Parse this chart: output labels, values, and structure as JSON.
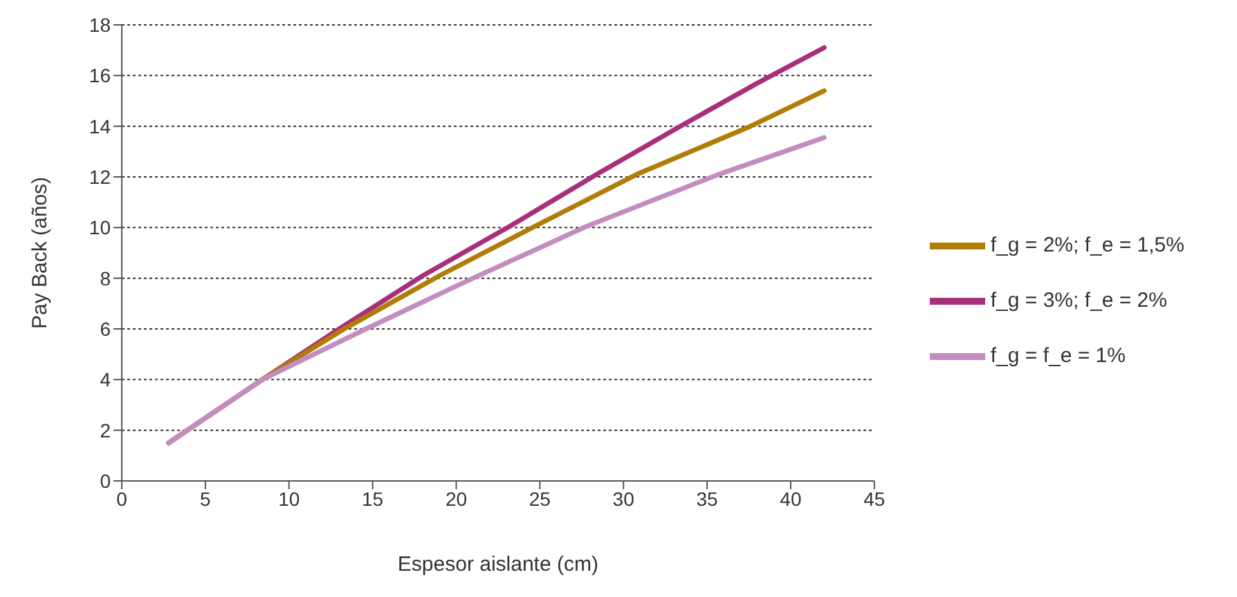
{
  "chart_data": {
    "type": "line",
    "xlabel": "Espesor aislante (cm)",
    "ylabel": "Pay Back (años)",
    "xlim": [
      0,
      45
    ],
    "xticks": [
      0,
      5,
      10,
      15,
      20,
      25,
      30,
      35,
      40,
      45
    ],
    "ylim": [
      0,
      18
    ],
    "yticks": [
      0,
      2,
      4,
      6,
      8,
      10,
      12,
      14,
      16,
      18
    ],
    "grid": "y",
    "legend": "right",
    "line_style": "solid",
    "series": [
      {
        "name": "f_g = 3%; f_e = 2%",
        "color": "#a8307a",
        "x": [
          2.8,
          8.4,
          13.0,
          18,
          23.2,
          28.4,
          33.4,
          38,
          42
        ],
        "values": [
          1.5,
          4.0,
          6.0,
          8.1,
          10.05,
          12.1,
          14.0,
          15.7,
          17.1
        ]
      },
      {
        "name": "f_g = 2%; f_e = 1,5%",
        "color": "#b07d0a",
        "x": [
          2.8,
          8.4,
          13.3,
          19,
          24.7,
          30.8,
          37.6,
          42
        ],
        "values": [
          1.5,
          4.0,
          6.0,
          8.1,
          10.05,
          12.1,
          14.0,
          15.4
        ]
      },
      {
        "name": "f_g = f_e = 1%",
        "color": "#c48dc0",
        "x": [
          2.8,
          8.4,
          14.6,
          21.0,
          27.8,
          35.7,
          42
        ],
        "values": [
          1.5,
          4.0,
          6.0,
          8.0,
          10.05,
          12.1,
          13.55
        ]
      }
    ]
  }
}
